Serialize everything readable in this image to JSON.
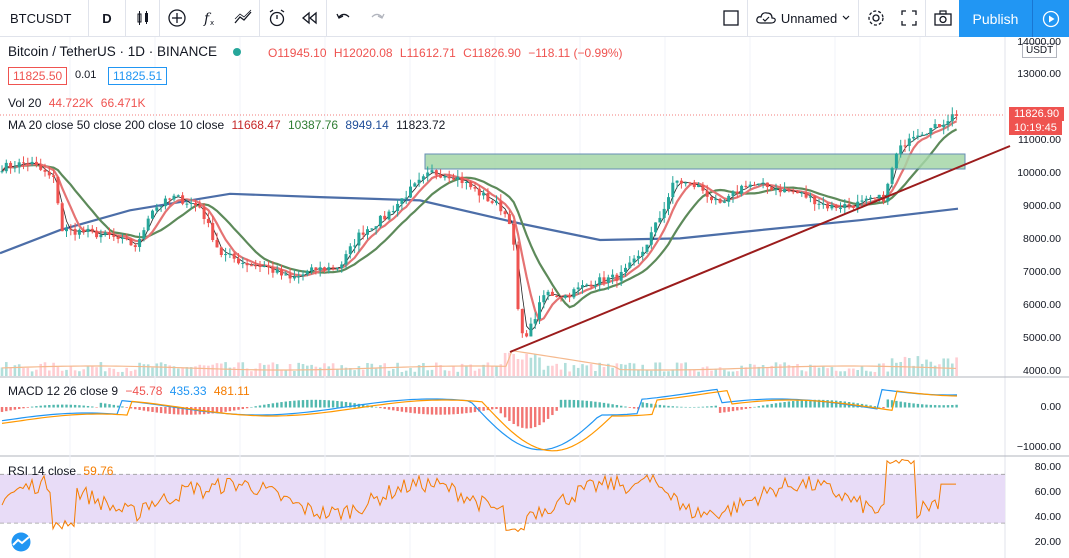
{
  "toolbar": {
    "symbol": "BTCUSDT",
    "interval": "D",
    "layout_name": "Unnamed",
    "publish_label": "Publish"
  },
  "legend": {
    "title": "Bitcoin / TetherUS · 1D · BINANCE",
    "open": "O11945.10",
    "high": "H12020.08",
    "low": "L11612.71",
    "close": "C11826.90",
    "change": "−118.11 (−0.99%)",
    "bid": "11825.50",
    "spread": "0.01",
    "ask": "11825.51",
    "vol_label": "Vol 20",
    "vol_value1": "44.722K",
    "vol_value2": "66.471K",
    "ma_label": "MA 20 close 50 close 200 close 10 close",
    "ma_value1": "11668.47",
    "ma_value2": "10387.76",
    "ma_value3": "8949.14",
    "ma_value4": "11823.72",
    "macd_label": "MACD 12 26 close 9",
    "macd_value1": "−45.78",
    "macd_value2": "435.33",
    "macd_value3": "481.11",
    "rsi_label": "RSI 14 close",
    "rsi_value": "59.76"
  },
  "price_axis": {
    "currency": "USDT",
    "labels": [
      "14000.00",
      "13000.00",
      "11000.00",
      "10000.00",
      "9000.00",
      "8000.00",
      "7000.00",
      "6000.00",
      "5000.00",
      "4000.00"
    ],
    "last_price": "11826.90",
    "countdown": "10:19:45"
  },
  "macd_axis": {
    "labels": [
      "0.00",
      "−1000.00"
    ]
  },
  "rsi_axis": {
    "labels": [
      "80.00",
      "60.00",
      "40.00",
      "20.00"
    ]
  },
  "colors": {
    "up": "#26a69a",
    "down": "#ef5350",
    "ma20": "#e57373",
    "ma50": "#5d8a5a",
    "ma200": "#4c6ea8",
    "ma10": "#222222",
    "trendline": "#9b1c1c",
    "zone_fill": "#a5d6a7",
    "zone_border": "#4c7ba8",
    "macd_line": "#2196f3",
    "signal_line": "#ff9800",
    "rsi_line": "#f57c00",
    "rsi_band": "#e8dcf7",
    "accent": "#2196f3"
  },
  "icons": [
    "candles-icon",
    "add-indicator-icon",
    "function-icon",
    "compare-icon",
    "alert-icon",
    "replay-icon",
    "undo-icon",
    "redo-icon",
    "fullscreen-icon",
    "cloud-icon",
    "settings-icon",
    "expand-icon",
    "camera-icon",
    "play-icon"
  ]
}
